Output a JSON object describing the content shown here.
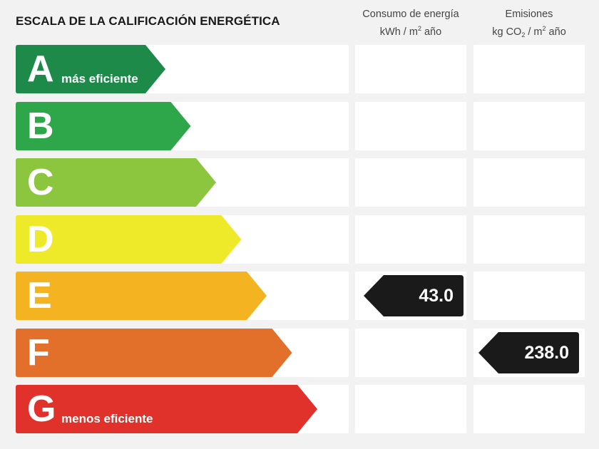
{
  "chart_data": {
    "type": "table",
    "title": "ESCALA DE LA CALIFICACIÓN ENERGÉTICA",
    "columns": {
      "consumption": {
        "line1": "Consumo de energía",
        "line2": "kWh / m",
        "sup": "2",
        "line2_tail": " año"
      },
      "emissions": {
        "line1": "Emisiones",
        "line2_a": "kg CO",
        "sub": "2",
        "line2_b": " / m",
        "sup": "2",
        "line2_tail": " año"
      }
    },
    "classes": [
      {
        "letter": "A",
        "note": "más eficiente",
        "color": "#1e8a4a"
      },
      {
        "letter": "B",
        "note": "",
        "color": "#2ea64a"
      },
      {
        "letter": "C",
        "note": "",
        "color": "#8cc63f"
      },
      {
        "letter": "D",
        "note": "",
        "color": "#eeea2a"
      },
      {
        "letter": "E",
        "note": "",
        "color": "#f4b320"
      },
      {
        "letter": "F",
        "note": "",
        "color": "#e3702a"
      },
      {
        "letter": "G",
        "note": "menos eficiente",
        "color": "#e1312b"
      }
    ],
    "consumption_rating": {
      "class": "E",
      "value": "43.0"
    },
    "emissions_rating": {
      "class": "F",
      "value": "238.0"
    }
  }
}
